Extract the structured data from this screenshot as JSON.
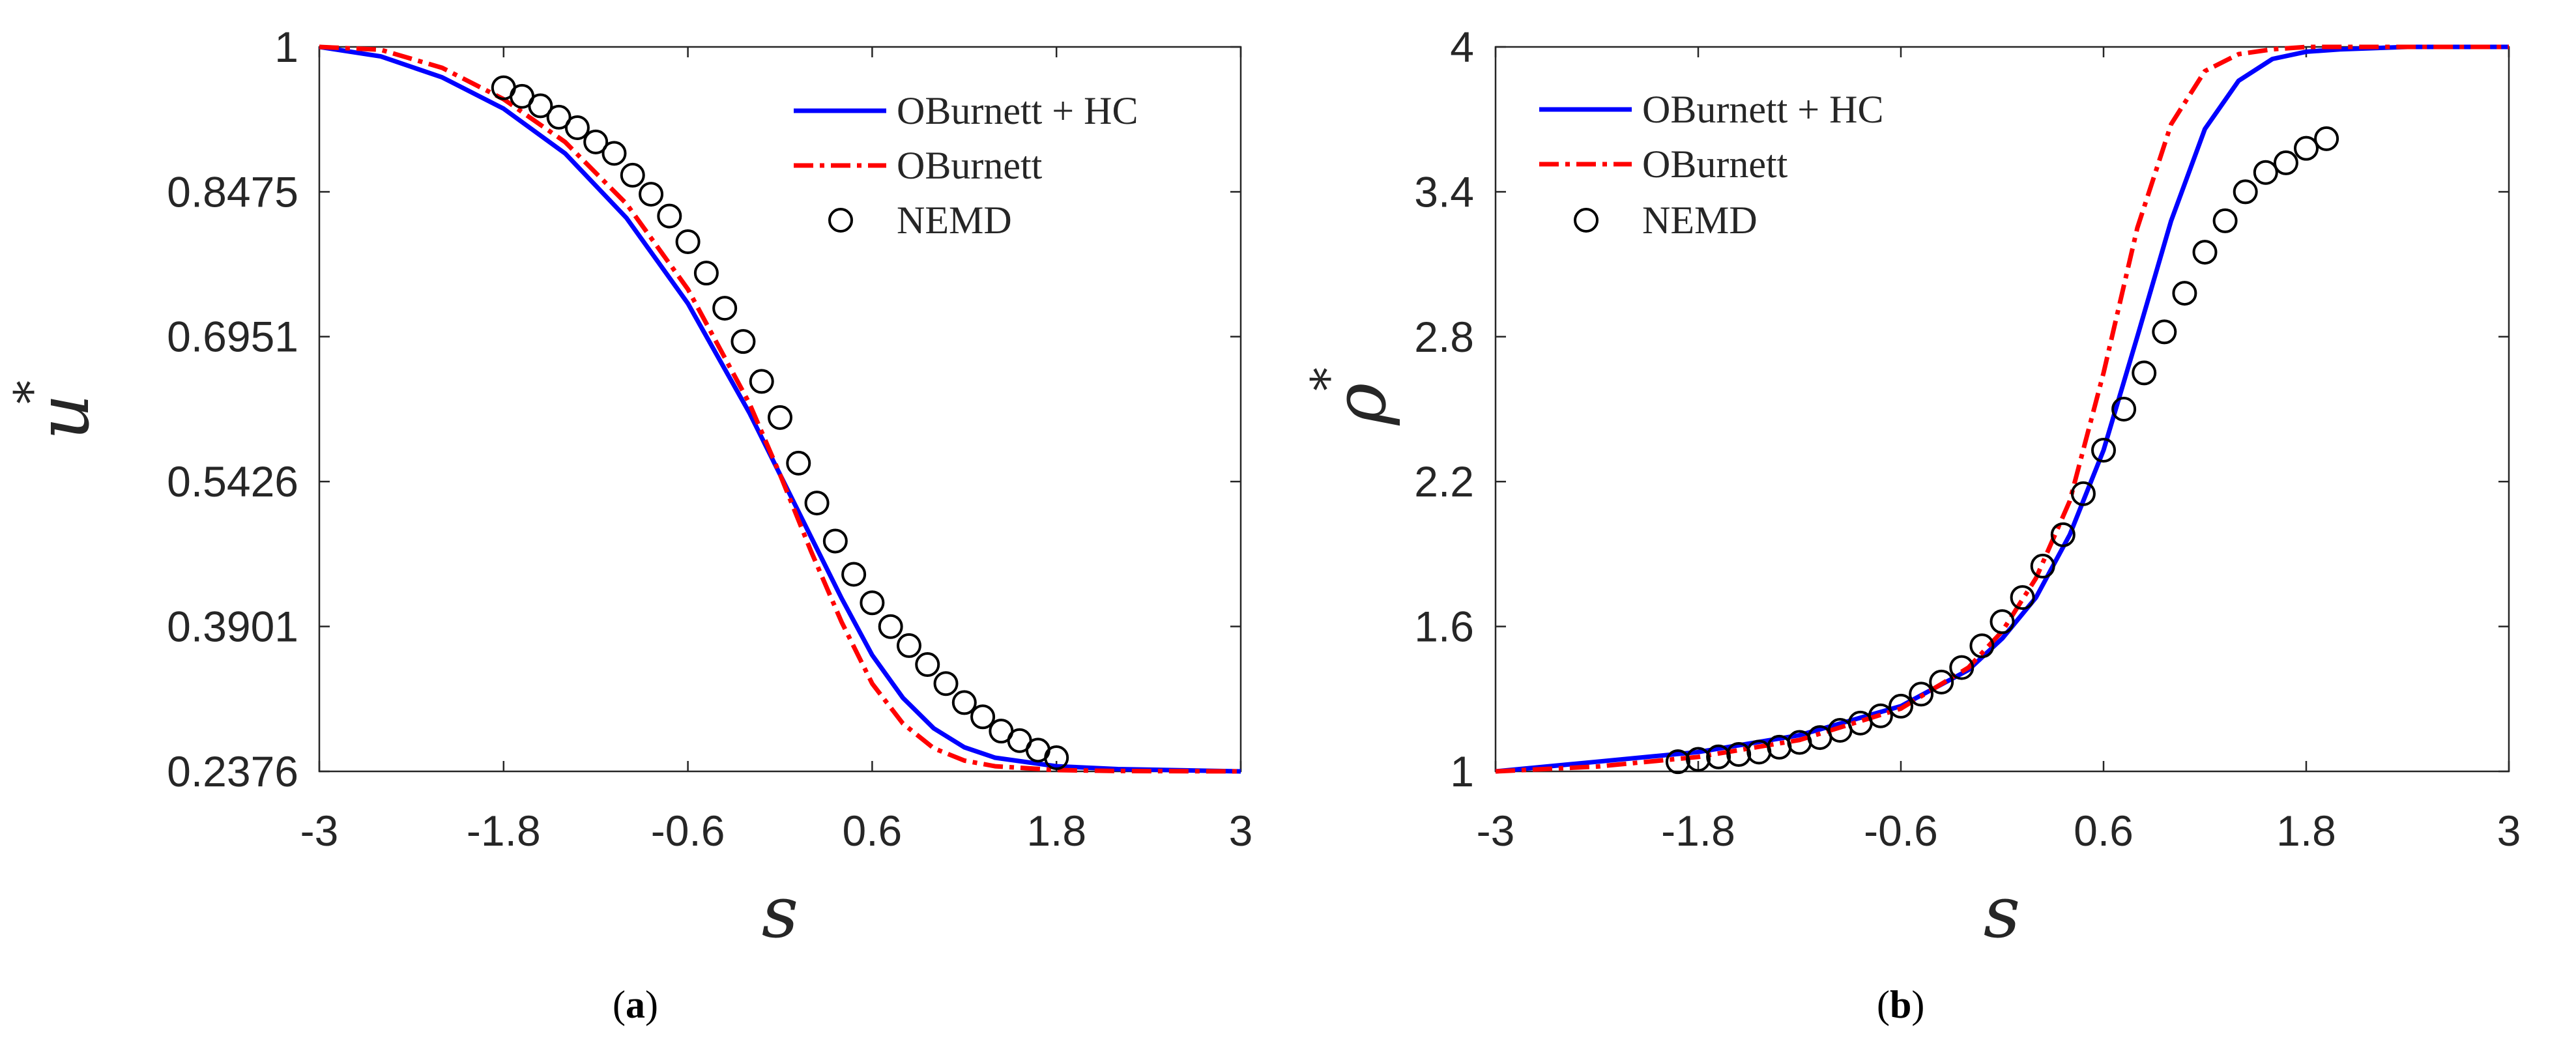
{
  "colors": {
    "hc": "#0000ff",
    "oburnett": "#ff0000",
    "nemd": "#000000"
  },
  "chart_data": [
    {
      "type": "line",
      "panel": "a",
      "caption": {
        "open": "(",
        "letter": "a",
        "close": ")"
      },
      "xlabel": "s",
      "ylabel": {
        "base": "u",
        "sup": "*"
      },
      "xlim": [
        -3,
        3
      ],
      "ylim": [
        0.2376,
        1
      ],
      "xticks": [
        "-3",
        "-1.8",
        "-0.6",
        "0.6",
        "1.8",
        "3"
      ],
      "yticks": [
        "1",
        "0.8475",
        "0.6951",
        "0.5426",
        "0.3901",
        "0.2376"
      ],
      "legend": {
        "placement": "top-right",
        "entries": [
          "OBurnett + HC",
          "OBurnett",
          "NEMD"
        ]
      },
      "series": [
        {
          "name": "OBurnett + HC",
          "style": "solid",
          "color": "#0000ff",
          "x": [
            -3,
            -2.6,
            -2.2,
            -1.8,
            -1.4,
            -1.0,
            -0.6,
            -0.2,
            0.0,
            0.2,
            0.4,
            0.6,
            0.8,
            1.0,
            1.2,
            1.4,
            1.8,
            2.2,
            3
          ],
          "y": [
            1.0,
            0.99,
            0.968,
            0.935,
            0.888,
            0.82,
            0.73,
            0.615,
            0.55,
            0.485,
            0.42,
            0.36,
            0.315,
            0.283,
            0.263,
            0.252,
            0.243,
            0.24,
            0.2376
          ]
        },
        {
          "name": "OBurnett",
          "style": "dashdot",
          "color": "#ff0000",
          "x": [
            -3,
            -2.6,
            -2.2,
            -1.8,
            -1.4,
            -1.0,
            -0.6,
            -0.2,
            0.0,
            0.2,
            0.4,
            0.6,
            0.8,
            1.0,
            1.2,
            1.4,
            1.8,
            2.2,
            3
          ],
          "y": [
            1.0,
            0.997,
            0.978,
            0.945,
            0.9,
            0.835,
            0.745,
            0.625,
            0.55,
            0.47,
            0.395,
            0.33,
            0.288,
            0.262,
            0.249,
            0.243,
            0.239,
            0.238,
            0.2376
          ]
        },
        {
          "name": "NEMD",
          "style": "marker",
          "color": "#000000",
          "x": [
            -1.8,
            -1.68,
            -1.56,
            -1.44,
            -1.32,
            -1.2,
            -1.08,
            -0.96,
            -0.84,
            -0.72,
            -0.6,
            -0.48,
            -0.36,
            -0.24,
            -0.12,
            0.0,
            0.12,
            0.24,
            0.36,
            0.48,
            0.6,
            0.72,
            0.84,
            0.96,
            1.08,
            1.2,
            1.32,
            1.44,
            1.56,
            1.68,
            1.8
          ],
          "y": [
            0.957,
            0.948,
            0.938,
            0.926,
            0.915,
            0.9,
            0.888,
            0.865,
            0.845,
            0.822,
            0.795,
            0.762,
            0.725,
            0.69,
            0.648,
            0.61,
            0.562,
            0.52,
            0.48,
            0.445,
            0.415,
            0.39,
            0.37,
            0.35,
            0.33,
            0.31,
            0.295,
            0.28,
            0.27,
            0.26,
            0.252
          ]
        }
      ]
    },
    {
      "type": "line",
      "panel": "b",
      "caption": {
        "open": "(",
        "letter": "b",
        "close": ")"
      },
      "xlabel": "s",
      "ylabel": {
        "base": "ρ",
        "sup": "*"
      },
      "xlim": [
        -3,
        3
      ],
      "ylim": [
        1,
        4
      ],
      "xticks": [
        "-3",
        "-1.8",
        "-0.6",
        "0.6",
        "1.8",
        "3"
      ],
      "yticks": [
        "4",
        "3.4",
        "2.8",
        "2.2",
        "1.6",
        "1"
      ],
      "legend": {
        "placement": "top-left",
        "entries": [
          "OBurnett + HC",
          "OBurnett",
          "NEMD"
        ]
      },
      "series": [
        {
          "name": "OBurnett + HC",
          "style": "solid",
          "color": "#0000ff",
          "x": [
            -3,
            -2.4,
            -1.8,
            -1.2,
            -0.6,
            -0.2,
            0.0,
            0.2,
            0.4,
            0.6,
            0.8,
            1.0,
            1.2,
            1.4,
            1.6,
            1.8,
            2.0,
            2.4,
            3
          ],
          "y": [
            1.0,
            1.04,
            1.08,
            1.15,
            1.27,
            1.42,
            1.55,
            1.72,
            1.98,
            2.33,
            2.8,
            3.28,
            3.66,
            3.86,
            3.95,
            3.98,
            3.99,
            4.0,
            4.0
          ]
        },
        {
          "name": "OBurnett",
          "style": "dashdot",
          "color": "#ff0000",
          "x": [
            -3,
            -2.4,
            -1.8,
            -1.2,
            -0.6,
            -0.2,
            0.0,
            0.2,
            0.4,
            0.6,
            0.8,
            1.0,
            1.2,
            1.4,
            1.6,
            1.8,
            2.0,
            2.4,
            3
          ],
          "y": [
            1.0,
            1.02,
            1.06,
            1.13,
            1.26,
            1.43,
            1.58,
            1.8,
            2.12,
            2.65,
            3.25,
            3.68,
            3.9,
            3.97,
            3.99,
            4.0,
            4.0,
            4.0,
            4.0
          ]
        },
        {
          "name": "NEMD",
          "style": "marker",
          "color": "#000000",
          "x": [
            -1.92,
            -1.8,
            -1.68,
            -1.56,
            -1.44,
            -1.32,
            -1.2,
            -1.08,
            -0.96,
            -0.84,
            -0.72,
            -0.6,
            -0.48,
            -0.36,
            -0.24,
            -0.12,
            0.0,
            0.12,
            0.24,
            0.36,
            0.48,
            0.6,
            0.72,
            0.84,
            0.96,
            1.08,
            1.2,
            1.32,
            1.44,
            1.56,
            1.68,
            1.8,
            1.92
          ],
          "y": [
            1.04,
            1.05,
            1.06,
            1.07,
            1.08,
            1.1,
            1.12,
            1.14,
            1.17,
            1.2,
            1.23,
            1.27,
            1.32,
            1.37,
            1.43,
            1.52,
            1.62,
            1.72,
            1.85,
            1.98,
            2.15,
            2.33,
            2.5,
            2.65,
            2.82,
            2.98,
            3.15,
            3.28,
            3.4,
            3.48,
            3.52,
            3.58,
            3.62
          ]
        }
      ]
    }
  ]
}
